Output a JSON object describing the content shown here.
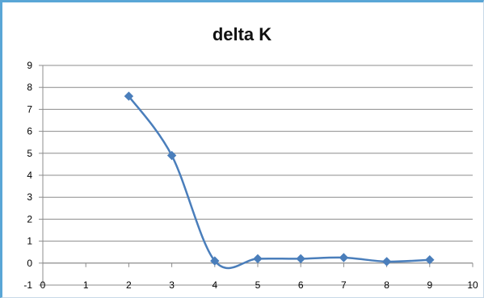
{
  "chart_data": {
    "type": "line",
    "title": "delta K",
    "xlabel": "",
    "ylabel": "",
    "x_ticks": [
      "0",
      "1",
      "2",
      "3",
      "4",
      "5",
      "6",
      "7",
      "8",
      "9",
      "10"
    ],
    "y_ticks": [
      "9",
      "8",
      "7",
      "6",
      "5",
      "4",
      "3",
      "2",
      "1",
      "0",
      "-1"
    ],
    "xlim": [
      0,
      10
    ],
    "ylim": [
      -1,
      9
    ],
    "grid": "horizontal",
    "legend": "none",
    "smooth": true,
    "marker": "diamond",
    "series": [
      {
        "x": [
          2,
          3,
          4,
          5,
          6,
          7,
          8,
          9
        ],
        "values": [
          7.6,
          4.9,
          0.1,
          0.2,
          0.2,
          0.25,
          0.07,
          0.15
        ],
        "color": "#4a7ebb"
      }
    ]
  }
}
